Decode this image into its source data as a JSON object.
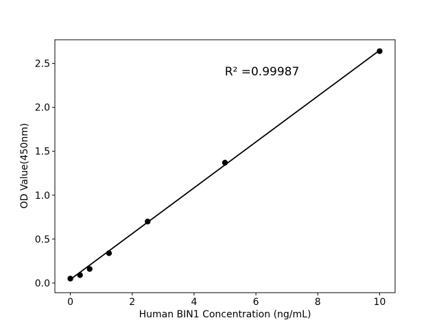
{
  "figure": {
    "background": "#ffffff"
  },
  "chart_data": {
    "type": "scatter",
    "title": "",
    "xlabel": "Human BIN1 Concentration (ng/mL)",
    "ylabel": "OD Value(450nm)",
    "annotation": "R² =0.99987",
    "x": [
      0,
      0.313,
      0.625,
      1.25,
      2.5,
      5,
      10
    ],
    "y": [
      0.05,
      0.09,
      0.16,
      0.34,
      0.7,
      1.37,
      2.64
    ],
    "fit_line": {
      "x": [
        0,
        10
      ],
      "y": [
        0.04,
        2.65
      ]
    },
    "xlim": [
      -0.5,
      10.5
    ],
    "ylim": [
      -0.11,
      2.77
    ],
    "xticks": {
      "values": [
        0,
        2,
        4,
        6,
        8,
        10
      ],
      "labels": [
        "0",
        "2",
        "4",
        "6",
        "8",
        "10"
      ]
    },
    "yticks": {
      "values": [
        0,
        0.5,
        1,
        1.5,
        2,
        2.5
      ],
      "labels": [
        "0.0",
        "0.5",
        "1.0",
        "1.5",
        "2.0",
        "2.5"
      ]
    },
    "grid": false,
    "legend": null,
    "colors": {
      "marker": "#000000",
      "line": "#000000",
      "spine": "#000000",
      "text": "#000000",
      "background": "#ffffff"
    }
  }
}
